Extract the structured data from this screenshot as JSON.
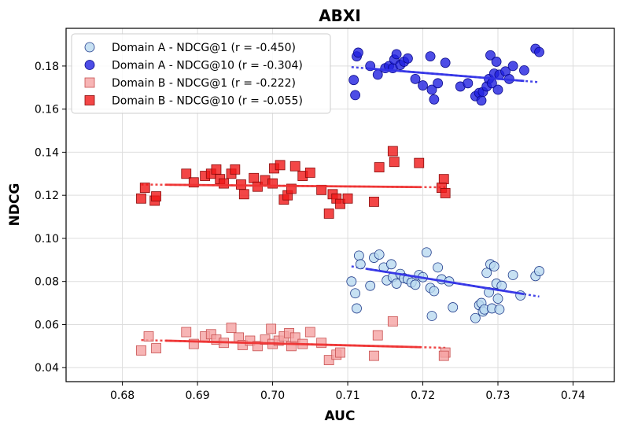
{
  "chart_data": {
    "type": "scatter",
    "title": "ABXI",
    "xlabel": "AUC",
    "ylabel": "NDCG",
    "xlim": [
      0.6725,
      0.7455
    ],
    "ylim": [
      0.0335,
      0.1975
    ],
    "xticks": [
      0.68,
      0.69,
      0.7,
      0.71,
      0.72,
      0.73,
      0.74
    ],
    "xtick_labels": [
      "0.68",
      "0.69",
      "0.70",
      "0.71",
      "0.72",
      "0.73",
      "0.74"
    ],
    "yticks": [
      0.04,
      0.06,
      0.08,
      0.1,
      0.12,
      0.14,
      0.16,
      0.18
    ],
    "ytick_labels": [
      "0.04",
      "0.06",
      "0.08",
      "0.10",
      "0.12",
      "0.14",
      "0.16",
      "0.18"
    ],
    "grid": true,
    "legend_position": "top-left",
    "series": [
      {
        "name": "Domain A - NDCG@1 (r = -0.450)",
        "marker": "circle",
        "fill": "#b9d9f0",
        "edge": "#1f3a8a",
        "points": [
          [
            0.7105,
            0.08
          ],
          [
            0.711,
            0.0745
          ],
          [
            0.7112,
            0.0675
          ],
          [
            0.7115,
            0.092
          ],
          [
            0.7117,
            0.088
          ],
          [
            0.713,
            0.078
          ],
          [
            0.7135,
            0.091
          ],
          [
            0.7142,
            0.0925
          ],
          [
            0.7148,
            0.0865
          ],
          [
            0.7152,
            0.0805
          ],
          [
            0.7158,
            0.088
          ],
          [
            0.716,
            0.082
          ],
          [
            0.7165,
            0.079
          ],
          [
            0.717,
            0.0835
          ],
          [
            0.7175,
            0.0815
          ],
          [
            0.718,
            0.081
          ],
          [
            0.7185,
            0.0795
          ],
          [
            0.719,
            0.0785
          ],
          [
            0.7195,
            0.083
          ],
          [
            0.72,
            0.082
          ],
          [
            0.7205,
            0.0935
          ],
          [
            0.721,
            0.077
          ],
          [
            0.7212,
            0.064
          ],
          [
            0.7215,
            0.0755
          ],
          [
            0.722,
            0.0865
          ],
          [
            0.7225,
            0.081
          ],
          [
            0.7235,
            0.08
          ],
          [
            0.724,
            0.068
          ],
          [
            0.727,
            0.063
          ],
          [
            0.7275,
            0.069
          ],
          [
            0.7278,
            0.07
          ],
          [
            0.728,
            0.066
          ],
          [
            0.7282,
            0.067
          ],
          [
            0.7285,
            0.084
          ],
          [
            0.7288,
            0.075
          ],
          [
            0.729,
            0.088
          ],
          [
            0.7292,
            0.0675
          ],
          [
            0.7295,
            0.087
          ],
          [
            0.7298,
            0.079
          ],
          [
            0.73,
            0.072
          ],
          [
            0.7302,
            0.067
          ],
          [
            0.7305,
            0.078
          ],
          [
            0.732,
            0.083
          ],
          [
            0.733,
            0.0735
          ],
          [
            0.735,
            0.0825
          ],
          [
            0.7355,
            0.0848
          ]
        ],
        "trend": {
          "x": [
            0.7105,
            0.7355
          ],
          "y": [
            0.087,
            0.073
          ],
          "color": "#3333e6"
        }
      },
      {
        "name": "Domain A - NDCG@10 (r = -0.304)",
        "marker": "circle",
        "fill": "#2020e0",
        "edge": "#0a0a8a",
        "points": [
          [
            0.7108,
            0.1735
          ],
          [
            0.711,
            0.1665
          ],
          [
            0.7112,
            0.1845
          ],
          [
            0.7114,
            0.1862
          ],
          [
            0.713,
            0.18
          ],
          [
            0.714,
            0.176
          ],
          [
            0.715,
            0.179
          ],
          [
            0.7155,
            0.18
          ],
          [
            0.716,
            0.179
          ],
          [
            0.7162,
            0.183
          ],
          [
            0.7165,
            0.1855
          ],
          [
            0.717,
            0.1805
          ],
          [
            0.7175,
            0.182
          ],
          [
            0.718,
            0.1835
          ],
          [
            0.719,
            0.174
          ],
          [
            0.72,
            0.171
          ],
          [
            0.721,
            0.1845
          ],
          [
            0.7212,
            0.169
          ],
          [
            0.7215,
            0.1645
          ],
          [
            0.722,
            0.172
          ],
          [
            0.723,
            0.1815
          ],
          [
            0.725,
            0.1705
          ],
          [
            0.726,
            0.172
          ],
          [
            0.727,
            0.166
          ],
          [
            0.7275,
            0.1675
          ],
          [
            0.7278,
            0.164
          ],
          [
            0.728,
            0.168
          ],
          [
            0.7285,
            0.1705
          ],
          [
            0.7288,
            0.174
          ],
          [
            0.729,
            0.185
          ],
          [
            0.7292,
            0.172
          ],
          [
            0.7295,
            0.1765
          ],
          [
            0.7298,
            0.182
          ],
          [
            0.73,
            0.169
          ],
          [
            0.7302,
            0.176
          ],
          [
            0.731,
            0.1775
          ],
          [
            0.7315,
            0.174
          ],
          [
            0.732,
            0.18
          ],
          [
            0.7335,
            0.178
          ],
          [
            0.735,
            0.188
          ],
          [
            0.7355,
            0.1865
          ]
        ],
        "trend": {
          "x": [
            0.7105,
            0.7355
          ],
          "y": [
            0.1795,
            0.1725
          ],
          "color": "#3333e6"
        }
      },
      {
        "name": "Domain B - NDCG@1 (r = -0.222)",
        "marker": "square",
        "fill": "#f5a3a3",
        "edge": "#c85050",
        "points": [
          [
            0.6825,
            0.048
          ],
          [
            0.6835,
            0.0545
          ],
          [
            0.6845,
            0.049
          ],
          [
            0.6885,
            0.0565
          ],
          [
            0.6895,
            0.051
          ],
          [
            0.691,
            0.0545
          ],
          [
            0.6918,
            0.0555
          ],
          [
            0.6925,
            0.053
          ],
          [
            0.6935,
            0.0515
          ],
          [
            0.6945,
            0.0585
          ],
          [
            0.6955,
            0.054
          ],
          [
            0.696,
            0.0505
          ],
          [
            0.697,
            0.0525
          ],
          [
            0.698,
            0.05
          ],
          [
            0.699,
            0.053
          ],
          [
            0.6998,
            0.058
          ],
          [
            0.7,
            0.051
          ],
          [
            0.7008,
            0.0525
          ],
          [
            0.7015,
            0.0545
          ],
          [
            0.7022,
            0.056
          ],
          [
            0.7025,
            0.05
          ],
          [
            0.703,
            0.054
          ],
          [
            0.704,
            0.051
          ],
          [
            0.705,
            0.0565
          ],
          [
            0.7065,
            0.0515
          ],
          [
            0.7075,
            0.0435
          ],
          [
            0.7085,
            0.046
          ],
          [
            0.709,
            0.047
          ],
          [
            0.7135,
            0.0455
          ],
          [
            0.714,
            0.055
          ],
          [
            0.716,
            0.0615
          ],
          [
            0.723,
            0.047
          ],
          [
            0.7228,
            0.0455
          ]
        ],
        "trend": {
          "x": [
            0.6825,
            0.723
          ],
          "y": [
            0.0528,
            0.0492
          ],
          "color": "#ee3333"
        }
      },
      {
        "name": "Domain B - NDCG@10 (r = -0.055)",
        "marker": "square",
        "fill": "#f01818",
        "edge": "#8a0a0a",
        "points": [
          [
            0.6825,
            0.1185
          ],
          [
            0.683,
            0.1235
          ],
          [
            0.6843,
            0.1175
          ],
          [
            0.6845,
            0.1195
          ],
          [
            0.6885,
            0.13
          ],
          [
            0.6895,
            0.126
          ],
          [
            0.691,
            0.129
          ],
          [
            0.6918,
            0.13
          ],
          [
            0.6925,
            0.132
          ],
          [
            0.693,
            0.1275
          ],
          [
            0.6935,
            0.1255
          ],
          [
            0.6945,
            0.13
          ],
          [
            0.695,
            0.132
          ],
          [
            0.6958,
            0.125
          ],
          [
            0.6962,
            0.1205
          ],
          [
            0.6975,
            0.128
          ],
          [
            0.698,
            0.124
          ],
          [
            0.699,
            0.127
          ],
          [
            0.7,
            0.1255
          ],
          [
            0.7002,
            0.1325
          ],
          [
            0.701,
            0.134
          ],
          [
            0.7015,
            0.118
          ],
          [
            0.702,
            0.12
          ],
          [
            0.7025,
            0.123
          ],
          [
            0.703,
            0.1335
          ],
          [
            0.704,
            0.129
          ],
          [
            0.705,
            0.1305
          ],
          [
            0.7065,
            0.1225
          ],
          [
            0.7075,
            0.1115
          ],
          [
            0.708,
            0.1205
          ],
          [
            0.7085,
            0.1185
          ],
          [
            0.709,
            0.116
          ],
          [
            0.71,
            0.1185
          ],
          [
            0.7135,
            0.117
          ],
          [
            0.7142,
            0.133
          ],
          [
            0.716,
            0.1405
          ],
          [
            0.7162,
            0.1355
          ],
          [
            0.7195,
            0.135
          ],
          [
            0.7228,
            0.1275
          ],
          [
            0.7225,
            0.1235
          ],
          [
            0.723,
            0.121
          ]
        ],
        "trend": {
          "x": [
            0.6825,
            0.723
          ],
          "y": [
            0.125,
            0.1237
          ],
          "color": "#ee3333"
        }
      }
    ]
  }
}
